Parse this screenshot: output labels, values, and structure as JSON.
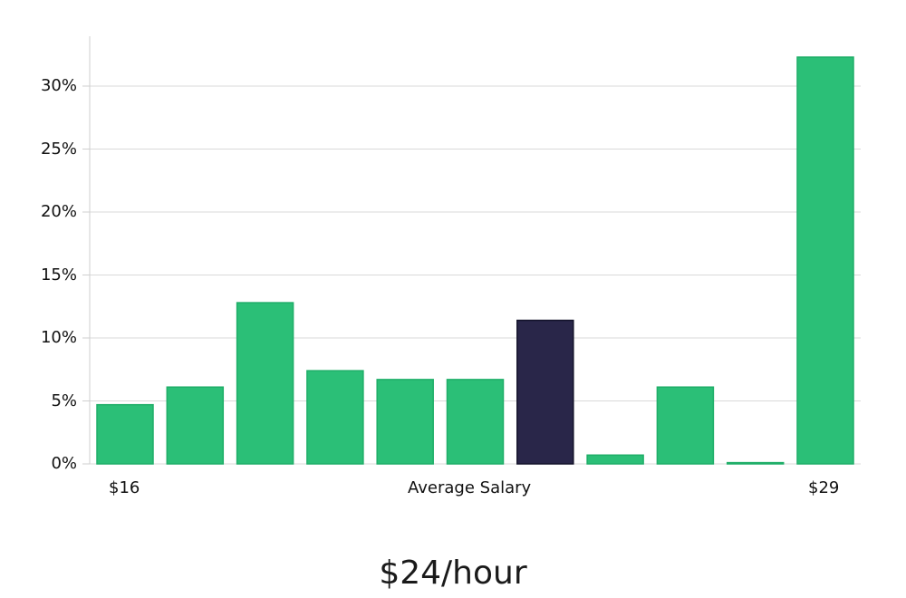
{
  "chart_data": {
    "type": "bar",
    "title": "",
    "xlabel": "Average Salary",
    "ylabel": "",
    "x_start_label": "$16",
    "x_end_label": "$29",
    "y_tick_labels": [
      "0%",
      "5%",
      "10%",
      "15%",
      "20%",
      "25%",
      "30%"
    ],
    "ylim": [
      0,
      34
    ],
    "grid": true,
    "values": [
      4.7,
      6.1,
      12.8,
      7.4,
      6.7,
      6.7,
      11.4,
      0.7,
      6.1,
      0.1,
      32.3
    ],
    "highlight_index": 6,
    "colors": {
      "bar": "#2bbf77",
      "bar_edge": "#1fae68",
      "highlight": "#292649",
      "highlight_edge": "#14132b",
      "grid": "#d9d9d9",
      "axis": "#cfcfcf"
    }
  },
  "headline": "$24/hour"
}
